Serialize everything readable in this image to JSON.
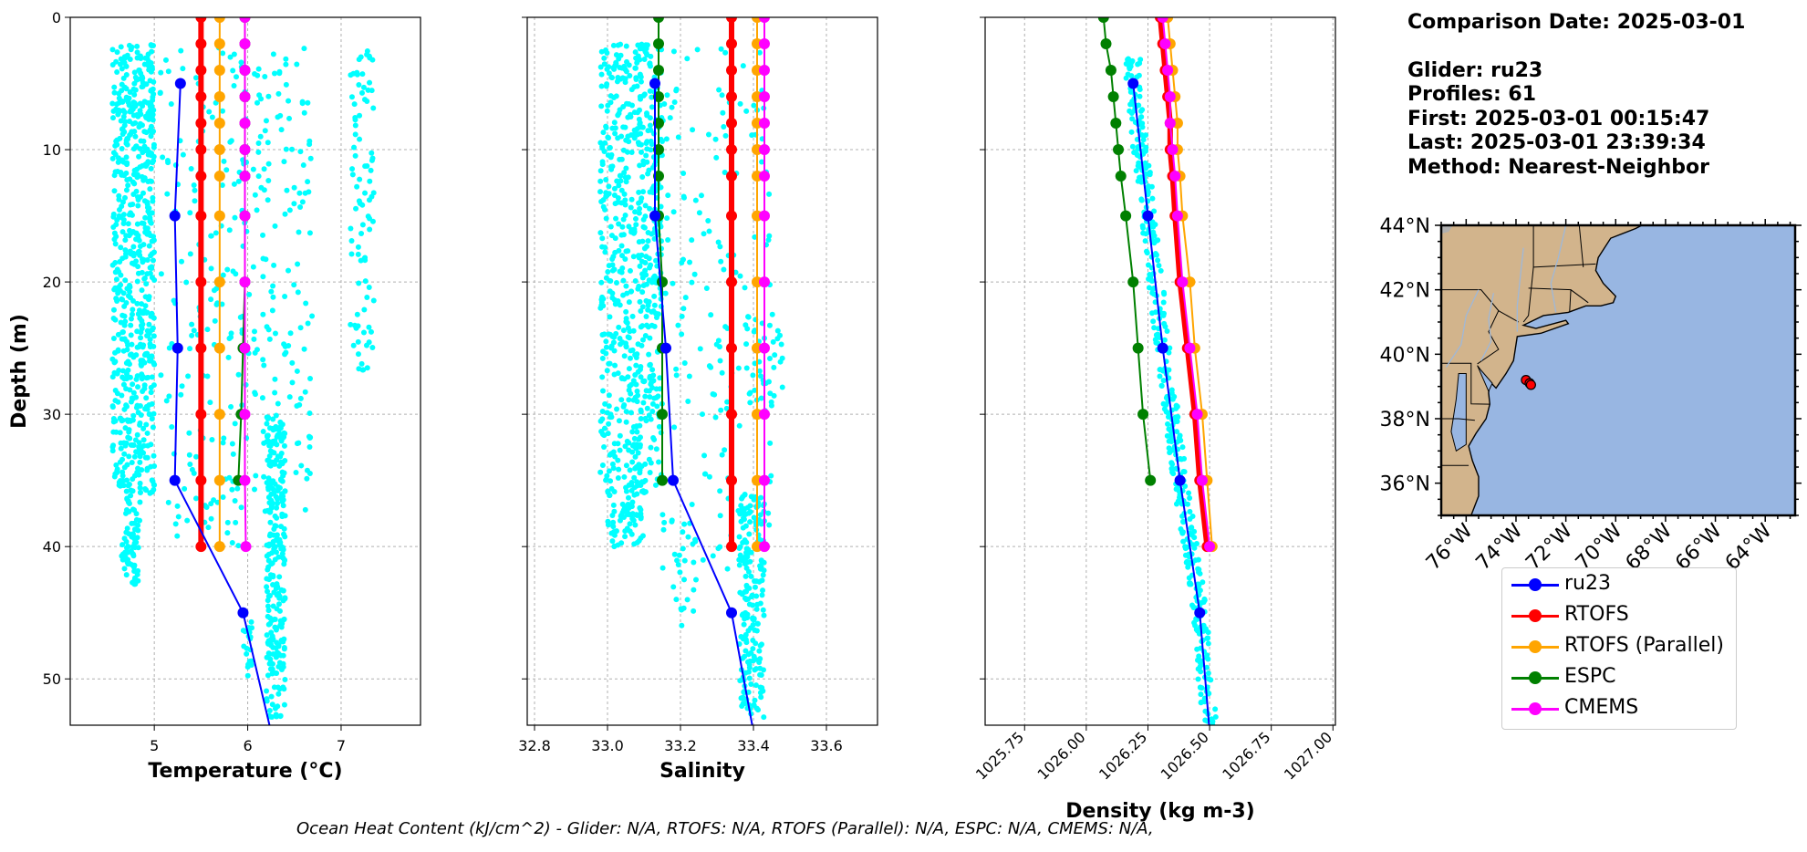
{
  "chart_data": [
    {
      "type": "line",
      "xlabel": "Temperature (°C)",
      "ylabel": "Depth (m)",
      "xlim": [
        4.1,
        7.85
      ],
      "ylim": [
        53.5,
        0
      ],
      "xticks": [
        5,
        6,
        7
      ],
      "yticks": [
        0,
        10,
        20,
        30,
        40,
        50
      ],
      "grid": true,
      "glider_scatter": [
        {
          "x": [
            4.55,
            5.0
          ],
          "depth": [
            2,
            36
          ],
          "n": 650
        },
        {
          "x": [
            4.65,
            4.85
          ],
          "depth": [
            36,
            43
          ],
          "n": 70
        },
        {
          "x": [
            5.05,
            6.05
          ],
          "depth": [
            2,
            40
          ],
          "n": 170
        },
        {
          "x": [
            6.05,
            6.7
          ],
          "depth": [
            2,
            38
          ],
          "n": 150
        },
        {
          "x": [
            7.1,
            7.35
          ],
          "depth": [
            2,
            27
          ],
          "n": 90
        },
        {
          "x": [
            6.2,
            6.4
          ],
          "depth": [
            30,
            53
          ],
          "n": 260
        },
        {
          "x": [
            5.95,
            6.05
          ],
          "depth": [
            45,
            50
          ],
          "n": 20
        }
      ],
      "series": [
        {
          "name": "ru23",
          "depth": [
            5,
            15,
            25,
            35,
            45,
            54
          ],
          "values": [
            5.28,
            5.22,
            5.25,
            5.22,
            5.95,
            6.25
          ]
        },
        {
          "name": "RTOFS",
          "depth": [
            0,
            2,
            4,
            6,
            8,
            10,
            12,
            15,
            20,
            25,
            30,
            35,
            40
          ],
          "values": [
            5.5,
            5.5,
            5.5,
            5.5,
            5.5,
            5.5,
            5.5,
            5.5,
            5.5,
            5.5,
            5.5,
            5.5,
            5.5
          ]
        },
        {
          "name": "RTOFS (Parallel)",
          "depth": [
            0,
            2,
            4,
            6,
            8,
            10,
            12,
            15,
            20,
            25,
            30,
            35,
            40
          ],
          "values": [
            5.7,
            5.7,
            5.7,
            5.7,
            5.7,
            5.7,
            5.7,
            5.7,
            5.7,
            5.7,
            5.7,
            5.7,
            5.7
          ]
        },
        {
          "name": "ESPC",
          "depth": [
            0,
            2,
            4,
            6,
            8,
            10,
            12,
            15,
            20,
            25,
            30,
            35
          ],
          "values": [
            5.97,
            5.97,
            5.97,
            5.97,
            5.97,
            5.97,
            5.97,
            5.97,
            5.97,
            5.95,
            5.93,
            5.9
          ]
        },
        {
          "name": "CMEMS",
          "depth": [
            0,
            2,
            4,
            6,
            8,
            10,
            12,
            15,
            20,
            25,
            30,
            35,
            40
          ],
          "values": [
            5.97,
            5.97,
            5.97,
            5.97,
            5.97,
            5.97,
            5.97,
            5.97,
            5.97,
            5.97,
            5.97,
            5.97,
            5.98
          ]
        }
      ]
    },
    {
      "type": "line",
      "xlabel": "Salinity",
      "ylabel": "",
      "xlim": [
        32.78,
        33.74
      ],
      "ylim": [
        53.5,
        0
      ],
      "xticks": [
        32.8,
        33.0,
        33.2,
        33.4,
        33.6
      ],
      "yticks": [
        0,
        10,
        20,
        30,
        40,
        50
      ],
      "grid": true,
      "glider_scatter": [
        {
          "x": [
            32.98,
            33.15
          ],
          "depth": [
            2,
            36
          ],
          "n": 650
        },
        {
          "x": [
            33.0,
            33.1
          ],
          "depth": [
            36,
            40
          ],
          "n": 60
        },
        {
          "x": [
            33.15,
            33.45
          ],
          "depth": [
            2,
            42
          ],
          "n": 160
        },
        {
          "x": [
            33.38,
            33.48
          ],
          "depth": [
            22,
            30
          ],
          "n": 40
        },
        {
          "x": [
            33.36,
            33.43
          ],
          "depth": [
            36,
            53
          ],
          "n": 200
        },
        {
          "x": [
            33.18,
            33.25
          ],
          "depth": [
            38,
            46
          ],
          "n": 20
        }
      ],
      "series": [
        {
          "name": "ru23",
          "depth": [
            5,
            15,
            25,
            35,
            45,
            54
          ],
          "values": [
            33.13,
            33.13,
            33.16,
            33.18,
            33.34,
            33.4
          ]
        },
        {
          "name": "RTOFS",
          "depth": [
            0,
            2,
            4,
            6,
            8,
            10,
            12,
            15,
            20,
            25,
            30,
            35,
            40
          ],
          "values": [
            33.34,
            33.34,
            33.34,
            33.34,
            33.34,
            33.34,
            33.34,
            33.34,
            33.34,
            33.34,
            33.34,
            33.34,
            33.34
          ]
        },
        {
          "name": "RTOFS (Parallel)",
          "depth": [
            0,
            2,
            4,
            6,
            8,
            10,
            12,
            15,
            20,
            25,
            30,
            35,
            40
          ],
          "values": [
            33.41,
            33.41,
            33.41,
            33.41,
            33.41,
            33.41,
            33.41,
            33.41,
            33.41,
            33.41,
            33.41,
            33.41,
            33.41
          ]
        },
        {
          "name": "ESPC",
          "depth": [
            0,
            2,
            4,
            6,
            8,
            10,
            12,
            15,
            20,
            25,
            30,
            35
          ],
          "values": [
            33.14,
            33.14,
            33.14,
            33.14,
            33.14,
            33.14,
            33.14,
            33.14,
            33.15,
            33.15,
            33.15,
            33.15
          ]
        },
        {
          "name": "CMEMS",
          "depth": [
            0,
            2,
            4,
            6,
            8,
            10,
            12,
            15,
            20,
            25,
            30,
            35,
            40
          ],
          "values": [
            33.43,
            33.43,
            33.43,
            33.43,
            33.43,
            33.43,
            33.43,
            33.43,
            33.43,
            33.43,
            33.43,
            33.43,
            33.43
          ]
        }
      ]
    },
    {
      "type": "line",
      "xlabel": "Density (kg m-3)",
      "ylabel": "",
      "xlim": [
        1025.59,
        1027.01
      ],
      "ylim": [
        53.5,
        0
      ],
      "xticks": [
        1025.75,
        1026.0,
        1026.25,
        1026.5,
        1026.75,
        1027.0
      ],
      "xticklabels": [
        "1025.75",
        "1026.00",
        "1026.25",
        "1026.50",
        "1026.75",
        "1027.00"
      ],
      "yticks": [
        0,
        10,
        20,
        30,
        40,
        50
      ],
      "grid": true,
      "series": [
        {
          "name": "ru23",
          "depth": [
            5,
            15,
            25,
            35,
            45,
            54
          ],
          "values": [
            1026.19,
            1026.25,
            1026.31,
            1026.38,
            1026.46,
            1026.5
          ]
        },
        {
          "name": "RTOFS",
          "depth": [
            0,
            2,
            4,
            6,
            8,
            10,
            12,
            15,
            20,
            25,
            30,
            35,
            40
          ],
          "values": [
            1026.3,
            1026.31,
            1026.32,
            1026.33,
            1026.34,
            1026.34,
            1026.35,
            1026.36,
            1026.38,
            1026.41,
            1026.44,
            1026.46,
            1026.49
          ]
        },
        {
          "name": "RTOFS (Parallel)",
          "depth": [
            0,
            2,
            4,
            6,
            8,
            10,
            12,
            15,
            20,
            25,
            30,
            35,
            40
          ],
          "values": [
            1026.33,
            1026.34,
            1026.35,
            1026.36,
            1026.37,
            1026.37,
            1026.38,
            1026.39,
            1026.42,
            1026.44,
            1026.47,
            1026.49,
            1026.51
          ]
        },
        {
          "name": "ESPC",
          "depth": [
            0,
            2,
            4,
            6,
            8,
            10,
            12,
            15,
            20,
            25,
            30,
            35
          ],
          "values": [
            1026.07,
            1026.08,
            1026.1,
            1026.11,
            1026.12,
            1026.13,
            1026.14,
            1026.16,
            1026.19,
            1026.21,
            1026.23,
            1026.26
          ]
        },
        {
          "name": "CMEMS",
          "depth": [
            0,
            2,
            4,
            6,
            8,
            10,
            12,
            15,
            20,
            25,
            30,
            35,
            40
          ],
          "values": [
            1026.31,
            1026.32,
            1026.33,
            1026.34,
            1026.34,
            1026.35,
            1026.36,
            1026.37,
            1026.39,
            1026.42,
            1026.45,
            1026.47,
            1026.5
          ]
        }
      ]
    }
  ],
  "map": {
    "lat_labels": [
      "44°N",
      "42°N",
      "40°N",
      "38°N",
      "36°N"
    ],
    "lon_labels": [
      "76°W",
      "74°W",
      "72°W",
      "70°W",
      "68°W",
      "66°W",
      "64°W"
    ],
    "lon_range": [
      -77,
      -62.8
    ],
    "lat_range": [
      35,
      44
    ],
    "glider_positions": [
      [
        -73.6,
        39.2
      ],
      [
        -73.45,
        39.1
      ],
      [
        -73.4,
        39.05
      ]
    ],
    "ocean_color": "#98b6e2",
    "land_color": "#d2b48c"
  },
  "info": {
    "comparison_date": "Comparison Date: 2025-03-01",
    "glider": "Glider: ru23",
    "profiles": "Profiles: 61",
    "first": "First: 2025-03-01 00:15:47",
    "last": "Last: 2025-03-01 23:39:34",
    "method": "Method: Nearest-Neighbor"
  },
  "legend": [
    {
      "name": "ru23",
      "color": "#0000ff"
    },
    {
      "name": "RTOFS",
      "color": "#ff0000"
    },
    {
      "name": "RTOFS (Parallel)",
      "color": "#ffa500"
    },
    {
      "name": "ESPC",
      "color": "#008000"
    },
    {
      "name": "CMEMS",
      "color": "#ff00ff"
    }
  ],
  "colors": {
    "glider_scatter": "#00ffff",
    "grid": "#b0b0b0"
  },
  "footer": "Ocean Heat Content (kJ/cm^2) - Glider: N/A,  RTOFS: N/A,  RTOFS (Parallel): N/A,  ESPC: N/A,  CMEMS: N/A,"
}
